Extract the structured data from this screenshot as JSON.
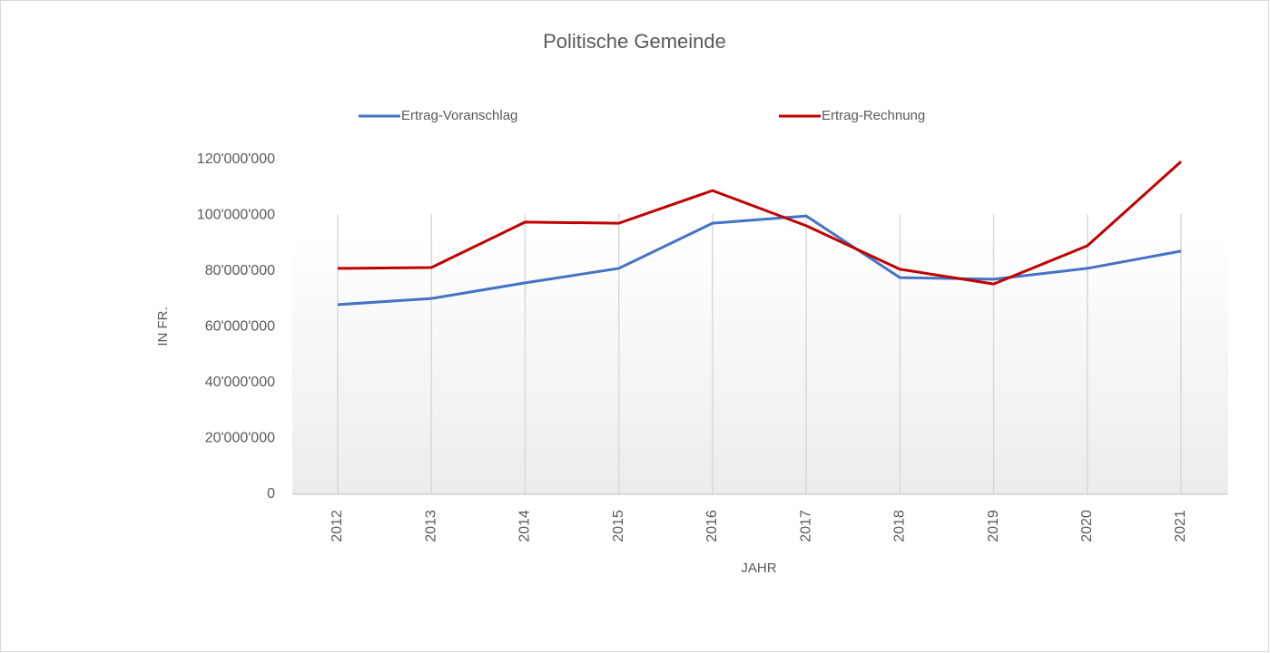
{
  "chart_data": {
    "type": "line",
    "title": "Politische Gemeinde",
    "x_label": "JAHR",
    "y_label": "IN FR.",
    "categories": [
      "2012",
      "2013",
      "2014",
      "2015",
      "2016",
      "2017",
      "2018",
      "2019",
      "2020",
      "2021"
    ],
    "series": [
      {
        "name": "Ertrag-Voranschlag",
        "color": "#4472c4",
        "values": [
          68000000,
          70200000,
          75800000,
          81000000,
          97200000,
          99800000,
          77700000,
          77100000,
          81000000,
          87200000
        ]
      },
      {
        "name": "Ertrag-Rechnung",
        "color": "#c00000",
        "values": [
          81000000,
          81300000,
          97600000,
          97200000,
          108900000,
          96300000,
          80700000,
          75400000,
          89100000,
          119300000
        ]
      }
    ],
    "ylim": [
      0,
      120000000
    ],
    "yticks": [
      0,
      {
        "value": 20000000,
        "label": "20'000'000"
      },
      {
        "value": 40000000,
        "label": "40'000'000"
      },
      {
        "value": 60000000,
        "label": "60'000'000"
      },
      {
        "value": 80000000,
        "label": "80'000'000"
      },
      {
        "value": 100000000,
        "label": "100'000'000"
      },
      {
        "value": 120000000,
        "label": "120'000'000"
      }
    ],
    "grid": true,
    "legend": "top"
  }
}
